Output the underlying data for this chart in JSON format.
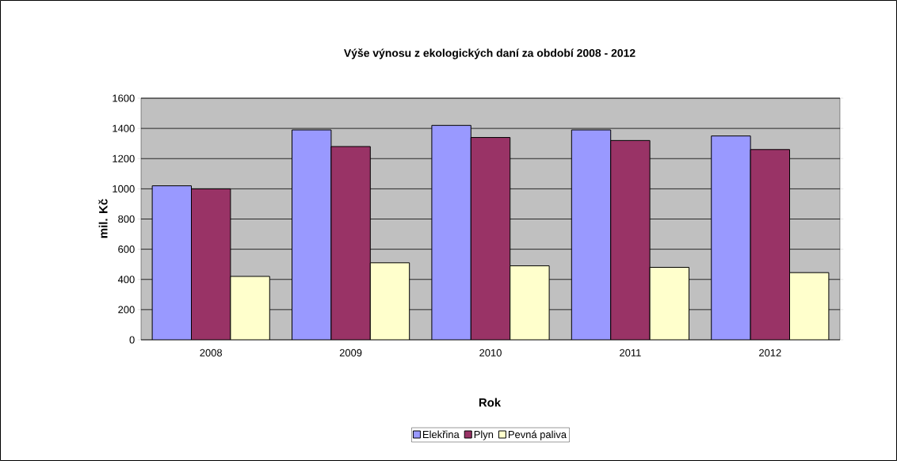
{
  "chart_data": {
    "type": "bar",
    "title": "Výše výnosu z ekologických daní za období 2008 - 2012",
    "xlabel": "Rok",
    "ylabel": "mil. Kč",
    "categories": [
      "2008",
      "2009",
      "2010",
      "2011",
      "2012"
    ],
    "series": [
      {
        "name": "Elekřina",
        "color": "#9999ff",
        "values": [
          1020,
          1390,
          1420,
          1390,
          1350
        ]
      },
      {
        "name": "Plyn",
        "color": "#993366",
        "values": [
          1000,
          1280,
          1340,
          1320,
          1260
        ]
      },
      {
        "name": "Pevná paliva",
        "color": "#ffffcc",
        "values": [
          420,
          510,
          490,
          480,
          445
        ]
      }
    ],
    "ylim": [
      0,
      1600
    ],
    "yticks": [
      0,
      200,
      400,
      600,
      800,
      1000,
      1200,
      1400,
      1600
    ],
    "grid": "y",
    "legend": "bottom"
  }
}
